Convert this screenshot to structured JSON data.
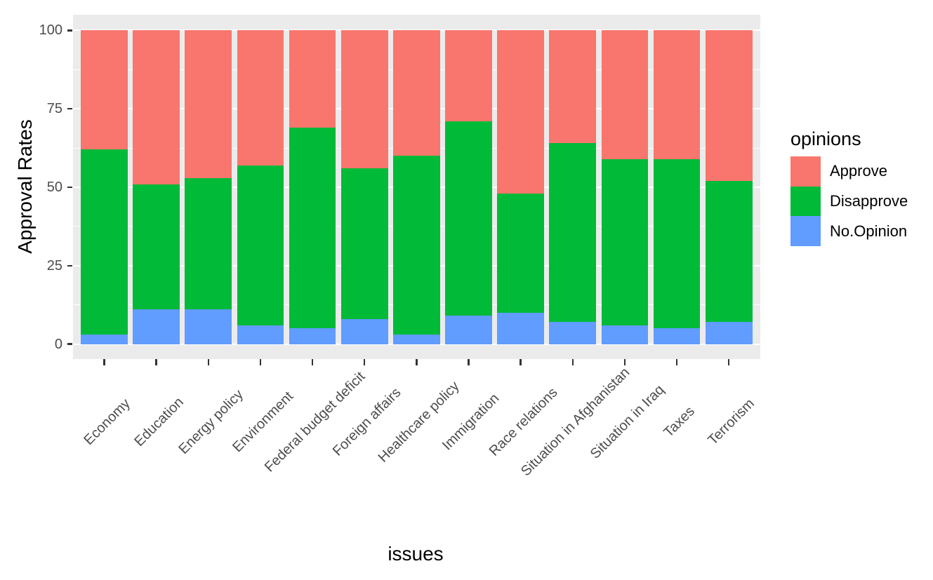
{
  "chart_data": {
    "type": "bar",
    "stacked": true,
    "orientation": "vertical",
    "title": "",
    "xlabel": "issues",
    "ylabel": "Approval Rates",
    "legend_title": "opinions",
    "legend_position": "right",
    "grid": true,
    "ylim": [
      0,
      100
    ],
    "yticks": [
      0,
      25,
      50,
      75,
      100
    ],
    "ytick_labels": [
      "0",
      "25",
      "50",
      "75",
      "100"
    ],
    "minor_yticks": [
      12.5,
      37.5,
      62.5,
      87.5
    ],
    "categories": [
      "Economy",
      "Education",
      "Energy policy",
      "Environment",
      "Federal budget deficit",
      "Foreign affairs",
      "Healthcare policy",
      "Immigration",
      "Race relations",
      "Situation in Afghanistan",
      "Situation in Iraq",
      "Taxes",
      "Terrorism"
    ],
    "stack_order_bottom_to_top": [
      "No.Opinion",
      "Disapprove",
      "Approve"
    ],
    "series": [
      {
        "name": "Approve",
        "color": "#F8766D",
        "values": [
          38,
          49,
          47,
          43,
          31,
          44,
          40,
          29,
          52,
          36,
          41,
          41,
          48
        ]
      },
      {
        "name": "Disapprove",
        "color": "#00BA38",
        "values": [
          59,
          40,
          42,
          51,
          64,
          48,
          57,
          62,
          38,
          57,
          53,
          54,
          45
        ]
      },
      {
        "name": "No.Opinion",
        "color": "#619CFF",
        "values": [
          3,
          11,
          11,
          6,
          5,
          8,
          3,
          9,
          10,
          7,
          6,
          5,
          7
        ]
      }
    ]
  },
  "style_colors": {
    "panel_background": "#EBEBEB",
    "gridline": "#FFFFFF",
    "axis_text": "#4D4D4D",
    "tick_mark": "#333333",
    "title_text": "#000000"
  }
}
